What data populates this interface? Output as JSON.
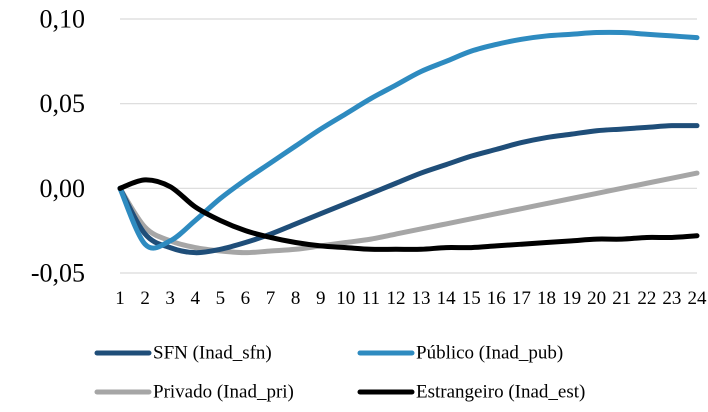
{
  "chart_data": {
    "type": "line",
    "title": "",
    "xlabel": "",
    "ylabel": "",
    "x": [
      1,
      2,
      3,
      4,
      5,
      6,
      7,
      8,
      9,
      10,
      11,
      12,
      13,
      14,
      15,
      16,
      17,
      18,
      19,
      20,
      21,
      22,
      23,
      24
    ],
    "x_tick_labels": [
      "1",
      "2",
      "3",
      "4",
      "5",
      "6",
      "7",
      "8",
      "9",
      "10",
      "11",
      "12",
      "13",
      "14",
      "15",
      "16",
      "17",
      "18",
      "19",
      "20",
      "21",
      "22",
      "23",
      "24"
    ],
    "ylim": [
      -0.05,
      0.1
    ],
    "y_ticks": [
      -0.05,
      0.0,
      0.05,
      0.1
    ],
    "y_tick_labels": [
      "-0,05",
      "0,00",
      "0,05",
      "0,10"
    ],
    "grid": "horizontal",
    "legend_position": "bottom",
    "series": [
      {
        "name": "SFN (Inad_sfn)",
        "color": "#1F4E79",
        "values": [
          0.0,
          -0.027,
          -0.035,
          -0.038,
          -0.036,
          -0.032,
          -0.027,
          -0.021,
          -0.015,
          -0.009,
          -0.003,
          0.003,
          0.009,
          0.014,
          0.019,
          0.023,
          0.027,
          0.03,
          0.032,
          0.034,
          0.035,
          0.036,
          0.037,
          0.037
        ]
      },
      {
        "name": "Público (Inad_pub)",
        "color": "#2E8BC0",
        "values": [
          0.0,
          -0.033,
          -0.031,
          -0.019,
          -0.006,
          0.005,
          0.015,
          0.025,
          0.035,
          0.044,
          0.053,
          0.061,
          0.069,
          0.075,
          0.081,
          0.085,
          0.088,
          0.09,
          0.091,
          0.092,
          0.092,
          0.091,
          0.09,
          0.089
        ]
      },
      {
        "name": "Privado (Inad_pri)",
        "color": "#A6A6A6",
        "values": [
          0.0,
          -0.023,
          -0.031,
          -0.035,
          -0.037,
          -0.038,
          -0.037,
          -0.036,
          -0.034,
          -0.032,
          -0.03,
          -0.027,
          -0.024,
          -0.021,
          -0.018,
          -0.015,
          -0.012,
          -0.009,
          -0.006,
          -0.003,
          0.0,
          0.003,
          0.006,
          0.009
        ]
      },
      {
        "name": "Estrangeiro (Inad_est)",
        "color": "#000000",
        "values": [
          0.0,
          0.005,
          0.001,
          -0.011,
          -0.019,
          -0.025,
          -0.029,
          -0.032,
          -0.034,
          -0.035,
          -0.036,
          -0.036,
          -0.036,
          -0.035,
          -0.035,
          -0.034,
          -0.033,
          -0.032,
          -0.031,
          -0.03,
          -0.03,
          -0.029,
          -0.029,
          -0.028
        ]
      }
    ]
  }
}
